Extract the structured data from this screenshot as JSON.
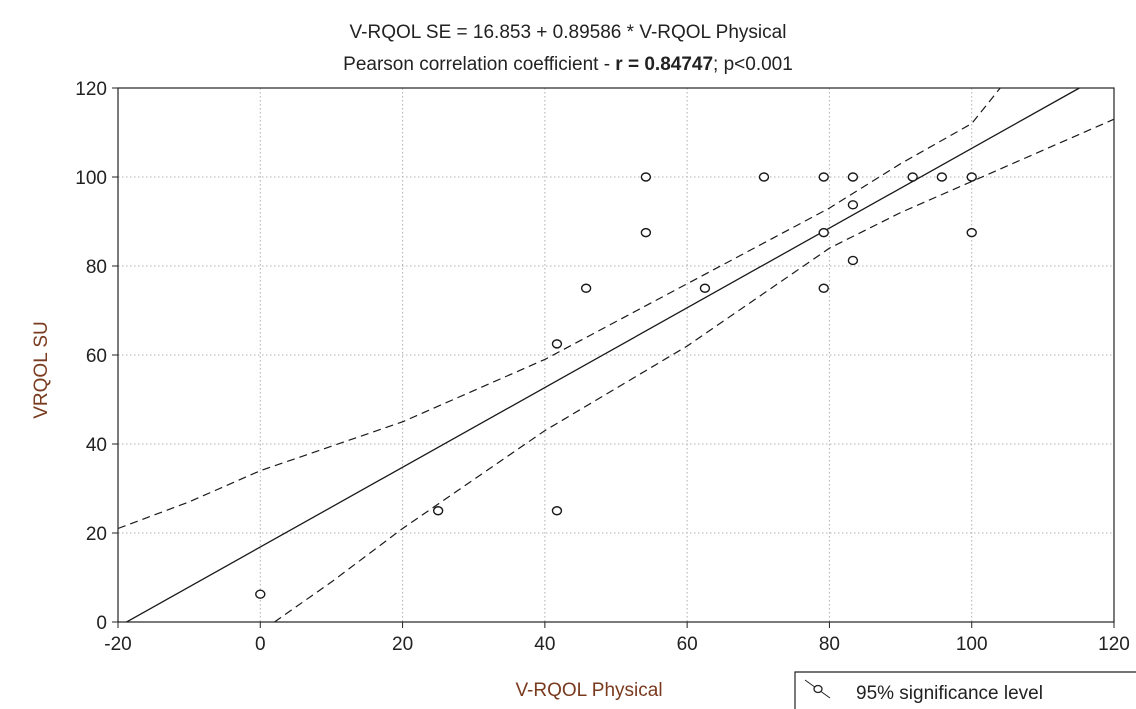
{
  "chart_data": {
    "type": "scatter",
    "title_line1": "V-RQOL SE = 16.853 + 0.89586 * V-RQOL Physical",
    "title_line2_prefix": "Pearson correlation coefficient - ",
    "title_line2_bold": "r = 0.84747",
    "title_line2_suffix": "; p<0.001",
    "xlabel": "V-RQOL Physical",
    "ylabel": "VRQOL SU",
    "xlim": [
      -20,
      120
    ],
    "ylim": [
      0,
      120
    ],
    "x_ticks": [
      "-20",
      "0",
      "20",
      "40",
      "60",
      "80",
      "100",
      "120"
    ],
    "y_ticks": [
      "0",
      "20",
      "40",
      "60",
      "80",
      "100",
      "120"
    ],
    "grid": true,
    "legend_label": "95% significance level",
    "regression": {
      "intercept": 16.853,
      "slope": 0.89586
    },
    "ci_upper": [
      [
        -20,
        21
      ],
      [
        -10,
        27
      ],
      [
        0,
        34
      ],
      [
        20,
        45
      ],
      [
        40,
        59
      ],
      [
        60,
        76
      ],
      [
        80,
        93
      ],
      [
        90,
        103
      ],
      [
        100,
        112
      ],
      [
        104,
        120
      ]
    ],
    "ci_lower": [
      [
        2,
        0
      ],
      [
        10,
        9
      ],
      [
        20,
        21
      ],
      [
        40,
        43
      ],
      [
        60,
        62
      ],
      [
        80,
        84
      ],
      [
        90,
        92
      ],
      [
        100,
        99
      ],
      [
        110,
        106
      ],
      [
        120,
        113
      ]
    ],
    "points": [
      {
        "x": 0,
        "y": 6.25
      },
      {
        "x": 25,
        "y": 25
      },
      {
        "x": 41.7,
        "y": 25
      },
      {
        "x": 41.7,
        "y": 62.5
      },
      {
        "x": 45.8,
        "y": 75
      },
      {
        "x": 54.2,
        "y": 87.5
      },
      {
        "x": 54.2,
        "y": 100
      },
      {
        "x": 62.5,
        "y": 75
      },
      {
        "x": 70.8,
        "y": 100
      },
      {
        "x": 79.2,
        "y": 75
      },
      {
        "x": 79.2,
        "y": 87.5
      },
      {
        "x": 79.2,
        "y": 100
      },
      {
        "x": 83.3,
        "y": 81.25
      },
      {
        "x": 83.3,
        "y": 93.75
      },
      {
        "x": 83.3,
        "y": 100
      },
      {
        "x": 91.7,
        "y": 100
      },
      {
        "x": 95.8,
        "y": 100
      },
      {
        "x": 100,
        "y": 87.5
      },
      {
        "x": 100,
        "y": 100
      }
    ]
  },
  "colors": {
    "axis_label": "#7a3a1e",
    "axes": "#222222",
    "grid": "#b0b0b0",
    "line": "#1a1a1a"
  }
}
